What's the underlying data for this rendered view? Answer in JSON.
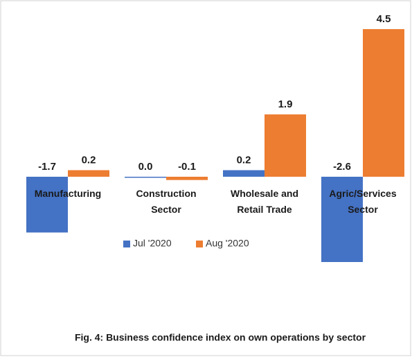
{
  "chart_data": {
    "type": "bar",
    "title": "Fig. 4: Business confidence index on own operations by sector",
    "categories": [
      "Manufacturing",
      "Construction Sector",
      "Wholesale and Retail Trade",
      "Agric/Services Sector"
    ],
    "series": [
      {
        "name": "Jul '2020",
        "color": "#4472c4",
        "values": [
          -1.7,
          0.0,
          0.2,
          -2.6
        ],
        "value_labels": [
          "-1.7",
          "0.0",
          "0.2",
          "-2.6"
        ]
      },
      {
        "name": "Aug '2020",
        "color": "#ed7d31",
        "values": [
          0.2,
          -0.1,
          1.9,
          4.5
        ],
        "value_labels": [
          "0.2",
          "-0.1",
          "1.9",
          "4.5"
        ]
      }
    ],
    "legend": "center"
  }
}
